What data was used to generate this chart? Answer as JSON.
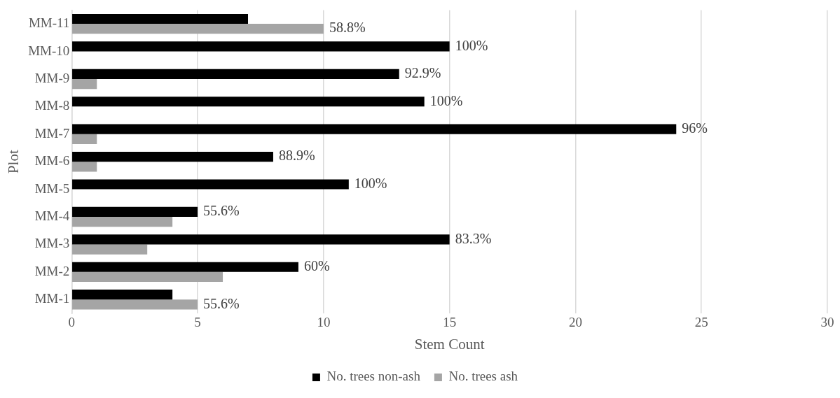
{
  "chart_data": {
    "type": "bar",
    "orientation": "horizontal",
    "xlabel": "Stem Count",
    "ylabel": "Plot",
    "categories": [
      "MM-11",
      "MM-10",
      "MM-9",
      "MM-8",
      "MM-7",
      "MM-6",
      "MM-5",
      "MM-4",
      "MM-3",
      "MM-2",
      "MM-1"
    ],
    "series": [
      {
        "name": "No. trees non-ash",
        "color": "#000000",
        "values": [
          7,
          15,
          13,
          14,
          24,
          8,
          11,
          5,
          15,
          9,
          4
        ]
      },
      {
        "name": "No. trees ash",
        "color": "#a5a5a5",
        "values": [
          10,
          0,
          1,
          0,
          1,
          1,
          0,
          4,
          3,
          6,
          5
        ]
      }
    ],
    "annotations": [
      {
        "text": "58.8%",
        "x": 10,
        "y": "MM-11"
      },
      {
        "text": "100%",
        "x": 15,
        "y": "MM-10"
      },
      {
        "text": "92.9%",
        "x": 13,
        "y": "MM-9"
      },
      {
        "text": "100%",
        "x": 14,
        "y": "MM-8"
      },
      {
        "text": "96%",
        "x": 24,
        "y": "MM-7"
      },
      {
        "text": "88.9%",
        "x": 8,
        "y": "MM-6"
      },
      {
        "text": "100%",
        "x": 11,
        "y": "MM-5"
      },
      {
        "text": "55.6%",
        "x": 5,
        "y": "MM-4"
      },
      {
        "text": "83.3%",
        "x": 15,
        "y": "MM-3"
      },
      {
        "text": "60%",
        "x": 9,
        "y": "MM-2"
      },
      {
        "text": "55.6%",
        "x": 5,
        "y": "MM-1"
      }
    ],
    "xlim": [
      0,
      30
    ],
    "xticks": [
      0,
      5,
      10,
      15,
      20,
      25,
      30
    ],
    "grid": "x",
    "legend": "bottom"
  }
}
